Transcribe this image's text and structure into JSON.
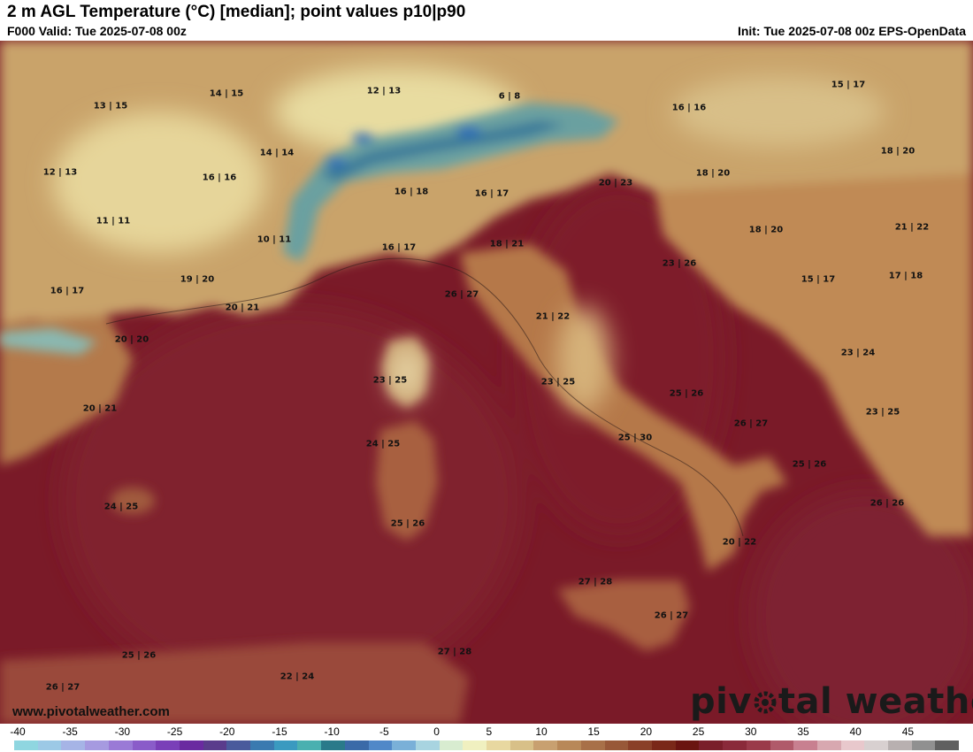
{
  "header": {
    "title": "2 m AGL Temperature (°C) [median]; point values p10|p90",
    "valid": "F000 Valid: Tue 2025-07-08 00z",
    "init": "Init: Tue 2025-07-08 00z EPS-OpenData"
  },
  "branding": {
    "website": "www.pivotalweather.com",
    "logo_text": "pivotal weather"
  },
  "colorbar": {
    "ticks": [
      "-40",
      "-35",
      "-30",
      "-25",
      "-20",
      "-15",
      "-10",
      "-5",
      "0",
      "5",
      "10",
      "15",
      "20",
      "25",
      "30",
      "35",
      "40",
      "45"
    ],
    "colors": [
      "#8fd6e0",
      "#9cc9e6",
      "#a6b4e6",
      "#a69ae0",
      "#9a7ad6",
      "#8a5cc9",
      "#7a3fb8",
      "#6a2aa0",
      "#5a3c8c",
      "#4a5a9c",
      "#3a7ab0",
      "#3a9ac0",
      "#4ab0b0",
      "#2a7a8a",
      "#3a6aa8",
      "#5088c8",
      "#7ab0d8",
      "#a8d4e0",
      "#d8ecd0",
      "#f0f0c0",
      "#e8d8a0",
      "#d8c088",
      "#c8a070",
      "#b88858",
      "#a87048",
      "#985838",
      "#8a4028",
      "#7a2818",
      "#6a1410",
      "#7a1e2a",
      "#8a2a3a",
      "#9a3a4a",
      "#b05a6a",
      "#c88090",
      "#d8a8b0",
      "#e8c8cc",
      "#d8d0d0",
      "#b8b0b0",
      "#909090",
      "#606060"
    ]
  },
  "point_values": [
    {
      "label": "13 | 15"
    },
    {
      "label": "14 | 15"
    },
    {
      "label": "12 | 13"
    },
    {
      "label": "6 | 8"
    },
    {
      "label": "16 | 16"
    },
    {
      "label": "15 | 17"
    },
    {
      "label": "12 | 13"
    },
    {
      "label": "14 | 14"
    },
    {
      "label": "16 | 16"
    },
    {
      "label": "16 | 18"
    },
    {
      "label": "16 | 17"
    },
    {
      "label": "20 | 23"
    },
    {
      "label": "18 | 20"
    },
    {
      "label": "18 | 20"
    },
    {
      "label": "11 | 11"
    },
    {
      "label": "10 | 11"
    },
    {
      "label": "18 | 21"
    },
    {
      "label": "18 | 20"
    },
    {
      "label": "21 | 22"
    },
    {
      "label": "16 | 17"
    },
    {
      "label": "16 | 17"
    },
    {
      "label": "19 | 20"
    },
    {
      "label": "23 | 26"
    },
    {
      "label": "15 | 17"
    },
    {
      "label": "17 | 18"
    },
    {
      "label": "20 | 21"
    },
    {
      "label": "26 | 27"
    },
    {
      "label": "21 | 22"
    },
    {
      "label": "20 | 20"
    },
    {
      "label": "23 | 24"
    },
    {
      "label": "23 | 25"
    },
    {
      "label": "23 | 25"
    },
    {
      "label": "25 | 26"
    },
    {
      "label": "20 | 21"
    },
    {
      "label": "23 | 25"
    },
    {
      "label": "26 | 27"
    },
    {
      "label": "24 | 25"
    },
    {
      "label": "25 | 30"
    },
    {
      "label": "25 | 26"
    },
    {
      "label": "24 | 25"
    },
    {
      "label": "26 | 26"
    },
    {
      "label": "25 | 26"
    },
    {
      "label": "20 | 22"
    },
    {
      "label": "27 | 28"
    },
    {
      "label": "26 | 27"
    },
    {
      "label": "25 | 26"
    },
    {
      "label": "27 | 28"
    },
    {
      "label": "22 | 24"
    },
    {
      "label": "26 | 27"
    }
  ]
}
